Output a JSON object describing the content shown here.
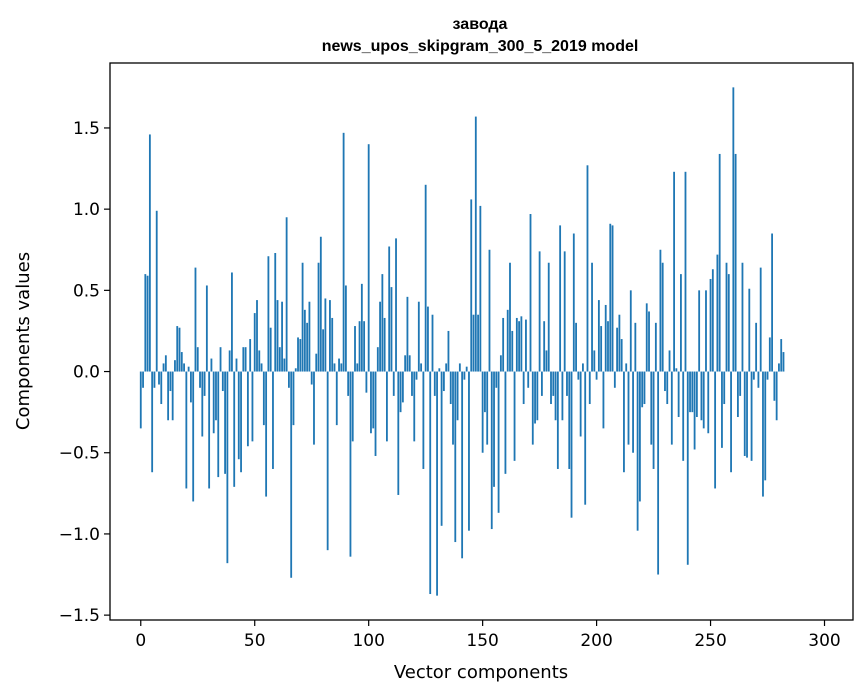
{
  "chart_data": {
    "type": "bar",
    "title": "завода",
    "subtitle": "news_upos_skipgram_300_5_2019 model",
    "xlabel": "Vector components",
    "ylabel": "Components values",
    "xlim": [
      -13.5,
      312.5
    ],
    "ylim": [
      -1.53,
      1.9
    ],
    "xticks": [
      0,
      50,
      100,
      150,
      200,
      250,
      300
    ],
    "xtick_labels": [
      "0",
      "50",
      "100",
      "150",
      "200",
      "250",
      "300"
    ],
    "yticks": [
      -1.5,
      -1.0,
      -0.5,
      0.0,
      0.5,
      1.0,
      1.5
    ],
    "ytick_labels": [
      "−1.5",
      "−1.0",
      "−0.5",
      "0.0",
      "0.5",
      "1.0",
      "1.5"
    ],
    "grid": false,
    "bar_color": "#1f77b4",
    "values": [
      -0.35,
      -0.1,
      0.6,
      0.59,
      1.46,
      -0.62,
      -0.1,
      0.99,
      -0.08,
      -0.2,
      0.05,
      0.1,
      -0.3,
      -0.12,
      -0.3,
      0.07,
      0.28,
      0.27,
      0.12,
      0.05,
      -0.72,
      0.03,
      -0.19,
      -0.8,
      0.64,
      0.15,
      -0.1,
      -0.4,
      -0.15,
      0.53,
      -0.72,
      0.08,
      -0.38,
      -0.3,
      -0.65,
      0.15,
      -0.12,
      -0.63,
      -1.18,
      0.13,
      0.61,
      -0.71,
      0.08,
      -0.54,
      -0.62,
      0.15,
      0.15,
      -0.46,
      0.2,
      -0.43,
      0.36,
      0.44,
      0.13,
      0.05,
      -0.33,
      -0.77,
      0.71,
      0.27,
      -0.6,
      0.73,
      0.44,
      0.15,
      0.43,
      0.08,
      0.95,
      -0.1,
      -1.27,
      -0.33,
      0.02,
      0.21,
      0.2,
      0.67,
      0.38,
      0.3,
      0.43,
      -0.08,
      -0.45,
      0.11,
      0.67,
      0.83,
      0.26,
      0.45,
      -1.1,
      0.44,
      0.33,
      0.05,
      -0.33,
      0.08,
      0.05,
      1.47,
      0.53,
      -0.15,
      -1.14,
      -0.43,
      0.28,
      0.05,
      0.31,
      0.54,
      0.31,
      -0.13,
      1.4,
      -0.38,
      -0.35,
      -0.52,
      0.15,
      0.43,
      0.6,
      0.33,
      -0.43,
      0.77,
      0.52,
      -0.15,
      0.82,
      -0.76,
      -0.25,
      -0.19,
      0.1,
      0.46,
      0.1,
      -0.15,
      -0.43,
      -0.05,
      0.43,
      0.05,
      -0.6,
      1.15,
      0.4,
      -1.37,
      0.35,
      -0.15,
      -1.38,
      0.02,
      -0.95,
      -0.12,
      0.05,
      0.25,
      -0.2,
      -0.45,
      -1.05,
      -0.3,
      0.05,
      -1.15,
      -0.05,
      0.03,
      -0.98,
      1.06,
      0.35,
      1.57,
      0.35,
      1.02,
      -0.5,
      -0.25,
      -0.45,
      0.75,
      -0.97,
      -0.71,
      -0.1,
      -0.87,
      0.1,
      0.33,
      -0.63,
      0.38,
      0.67,
      0.25,
      -0.55,
      0.33,
      0.31,
      0.34,
      -0.2,
      0.32,
      -0.1,
      0.97,
      -0.45,
      -0.32,
      -0.3,
      0.74,
      -0.15,
      0.31,
      0.13,
      0.67,
      -0.2,
      -0.15,
      -0.3,
      -0.6,
      0.9,
      -0.3,
      0.74,
      -0.15,
      -0.6,
      -0.9,
      0.85,
      0.3,
      -0.05,
      -0.4,
      0.05,
      -0.82,
      1.27,
      -0.2,
      0.67,
      0.13,
      -0.05,
      0.44,
      0.28,
      -0.35,
      0.41,
      0.31,
      0.91,
      0.9,
      -0.1,
      0.27,
      0.35,
      0.2,
      -0.62,
      0.05,
      -0.45,
      0.5,
      -0.5,
      0.3,
      -0.98,
      -0.8,
      -0.22,
      -0.2,
      0.42,
      0.37,
      -0.45,
      -0.6,
      0.3,
      -1.25,
      0.75,
      0.67,
      -0.12,
      -0.2,
      0.13,
      -0.45,
      1.23,
      0.02,
      -0.28,
      0.6,
      -0.55,
      1.23,
      -1.19,
      -0.25,
      -0.25,
      -0.48,
      -0.28,
      0.5,
      -0.3,
      -0.35,
      0.5,
      -0.38,
      0.57,
      0.63,
      -0.72,
      0.72,
      1.34,
      -0.47,
      -0.2,
      0.67,
      0.6,
      -0.62,
      1.75,
      1.34,
      -0.28,
      -0.15,
      0.67,
      -0.52,
      -0.53,
      0.51,
      -0.55,
      -0.05,
      0.3,
      -0.1,
      0.64,
      -0.77,
      -0.67,
      -0.05,
      0.21,
      0.85,
      -0.18,
      -0.3,
      0.05,
      0.2,
      0.12
    ]
  }
}
